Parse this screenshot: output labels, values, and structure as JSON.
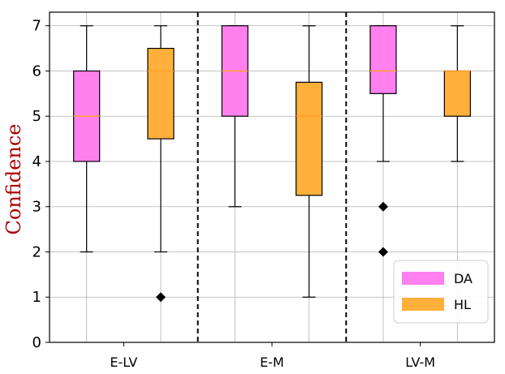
{
  "chart_data": {
    "type": "boxplot",
    "title": "",
    "xlabel": "",
    "ylabel": "Confidence",
    "ylabel_color": "#aa0000",
    "ylim": [
      0,
      7.3
    ],
    "yticks": [
      0,
      1,
      2,
      3,
      4,
      5,
      6,
      7
    ],
    "grid": true,
    "groups": [
      "E-LV",
      "E-M",
      "LV-M"
    ],
    "legend_position": "lower-right",
    "series": [
      {
        "name": "DA",
        "color": "#ff80ee",
        "boxes": [
          {
            "group": "E-LV",
            "whislo": 2,
            "q1": 4,
            "median": 5,
            "q3": 6,
            "whishi": 7,
            "fliers": []
          },
          {
            "group": "E-M",
            "whislo": 3,
            "q1": 5,
            "median": 6,
            "q3": 7,
            "whishi": 7,
            "fliers": []
          },
          {
            "group": "LV-M",
            "whislo": 4,
            "q1": 5.5,
            "median": 6,
            "q3": 7,
            "whishi": 7,
            "fliers": [
              3,
              2
            ]
          }
        ]
      },
      {
        "name": "HL",
        "color": "#ffb03b",
        "boxes": [
          {
            "group": "E-LV",
            "whislo": 2,
            "q1": 4.5,
            "median": 6,
            "q3": 6.5,
            "whishi": 7,
            "fliers": [
              1
            ]
          },
          {
            "group": "E-M",
            "whislo": 1,
            "q1": 3.25,
            "median": 5,
            "q3": 5.75,
            "whishi": 7,
            "fliers": []
          },
          {
            "group": "LV-M",
            "whislo": 4,
            "q1": 5,
            "median": 6,
            "q3": 6,
            "whishi": 7,
            "fliers": []
          }
        ]
      }
    ],
    "median_color": "#ff9f2e"
  }
}
